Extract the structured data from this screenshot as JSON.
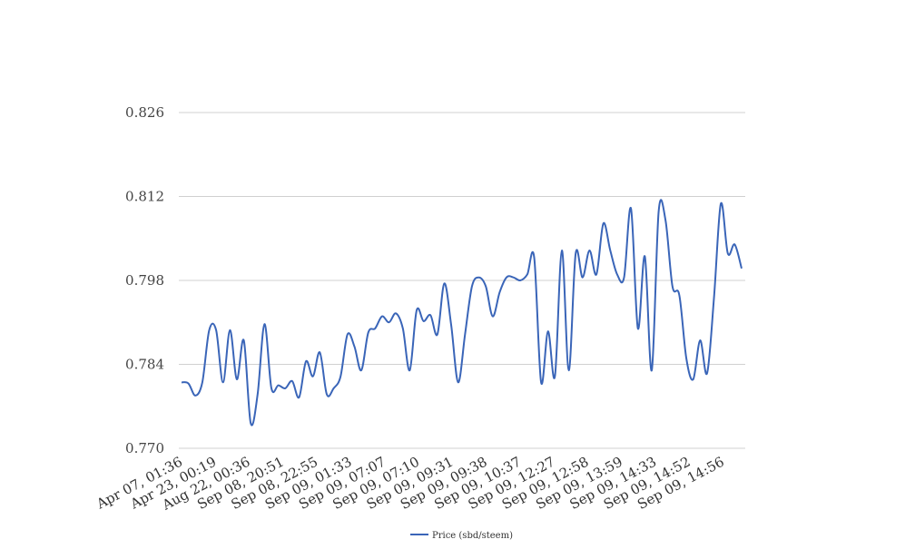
{
  "chart_data": {
    "type": "line",
    "title": "",
    "xlabel": "",
    "ylabel": "",
    "ylim": [
      0.77,
      0.826
    ],
    "yticks": [
      "0.770",
      "0.784",
      "0.798",
      "0.812",
      "0.826"
    ],
    "grid": true,
    "legend_position": "bottom",
    "x_tick_labels": [
      "Apr 07, 01:36",
      "Apr 23, 00:19",
      "Aug 22, 00:36",
      "Sep 08, 20:51",
      "Sep 08, 22:55",
      "Sep 09, 01:33",
      "Sep 09, 07:07",
      "Sep 09, 07:10",
      "Sep 09, 09:31",
      "Sep 09, 09:38",
      "Sep 09, 10:37",
      "Sep 09, 12:27",
      "Sep 09, 12:58",
      "Sep 09, 13:59",
      "Sep 09, 14:33",
      "Sep 09, 14:52",
      "Sep 09, 14:56"
    ],
    "series": [
      {
        "name": "Price (sbd/steem)",
        "color": "#3a65b8",
        "values": [
          0.781,
          0.7808,
          0.7788,
          0.781,
          0.7897,
          0.7897,
          0.781,
          0.7897,
          0.7815,
          0.788,
          0.7742,
          0.779,
          0.7907,
          0.78,
          0.7805,
          0.78,
          0.7812,
          0.7785,
          0.7845,
          0.782,
          0.786,
          0.779,
          0.78,
          0.782,
          0.789,
          0.787,
          0.783,
          0.7893,
          0.79,
          0.792,
          0.791,
          0.7925,
          0.79,
          0.783,
          0.793,
          0.7912,
          0.7922,
          0.789,
          0.7975,
          0.7905,
          0.781,
          0.789,
          0.797,
          0.7985,
          0.797,
          0.792,
          0.796,
          0.7985,
          0.7985,
          0.798,
          0.799,
          0.8018,
          0.781,
          0.7895,
          0.782,
          0.803,
          0.783,
          0.8025,
          0.7985,
          0.803,
          0.799,
          0.8075,
          0.803,
          0.799,
          0.7985,
          0.81,
          0.79,
          0.802,
          0.783,
          0.8095,
          0.808,
          0.797,
          0.7955,
          0.785,
          0.7815,
          0.788,
          0.7825,
          0.795,
          0.8108,
          0.8025,
          0.804,
          0.8
        ]
      }
    ]
  }
}
